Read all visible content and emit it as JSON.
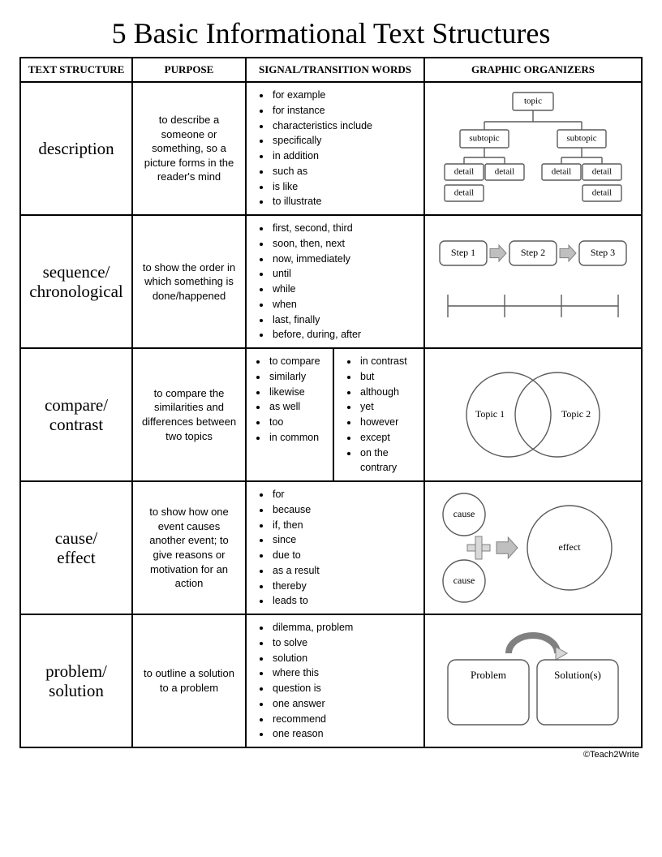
{
  "title": "5 Basic Informational Text Structures",
  "footer": "©Teach2Write",
  "colors": {
    "border": "#000000",
    "background": "#ffffff",
    "text": "#000000",
    "diagram_stroke": "#5b5b5b",
    "diagram_light": "#d9d9d9",
    "arrow_fill": "#bfbfbf"
  },
  "columns": [
    "TEXT STRUCTURE",
    "PURPOSE",
    "SIGNAL/TRANSITION WORDS",
    "GRAPHIC ORGANIZERS"
  ],
  "rows": [
    {
      "name": "description",
      "purpose": "to describe a someone or something, so a picture forms in the reader's mind",
      "signals": [
        "for example",
        "for instance",
        "characteristics include",
        " specifically",
        "in addition",
        "such as",
        "is like",
        "to illustrate"
      ],
      "organizer": {
        "type": "tree",
        "labels": {
          "root": "topic",
          "sub": "subtopic",
          "leaf": "detail"
        },
        "box_stroke": "#5b5b5b",
        "line_stroke": "#5b5b5b",
        "font_size": 11
      }
    },
    {
      "name": "sequence/\nchronological",
      "purpose": "to show the order in which something is done/happened",
      "signals": [
        "first, second, third",
        "soon, then, next",
        "now, immediately",
        "until",
        "while",
        " when",
        "last, finally",
        "before, during, after"
      ],
      "organizer": {
        "type": "sequence",
        "steps": [
          "Step 1",
          "Step 2",
          "Step 3"
        ],
        "box_stroke": "#5b5b5b",
        "arrow_fill": "#bfbfbf",
        "timeline_ticks": 4,
        "font_size": 12
      }
    },
    {
      "name": "compare/\ncontrast",
      "purpose": "to compare the similarities and differences between two topics",
      "signals_left": [
        "to compare",
        "similarly",
        "likewise",
        "as well",
        "too",
        "in common"
      ],
      "signals_right": [
        "in contrast",
        "but",
        "although",
        "yet",
        "however",
        "except",
        "on the contrary"
      ],
      "organizer": {
        "type": "venn",
        "labels": [
          "Topic 1",
          "Topic 2"
        ],
        "circle_stroke": "#5b5b5b",
        "font_size": 12
      }
    },
    {
      "name": "cause/\neffect",
      "purpose": "to show how one event causes another event; to give reasons or motivation for an action",
      "signals": [
        "for",
        "because",
        "if, then",
        "since",
        " due to",
        "as a result",
        "thereby",
        "leads to"
      ],
      "organizer": {
        "type": "cause_effect",
        "cause_label": "cause",
        "effect_label": "effect",
        "circle_stroke": "#5b5b5b",
        "plus_fill": "#d9d9d9",
        "arrow_fill": "#bfbfbf",
        "font_size": 12
      }
    },
    {
      "name": "problem/\nsolution",
      "purpose": "to outline a solution to a problem",
      "signals": [
        "dilemma, problem",
        "to solve",
        "solution",
        "where this",
        "question is",
        "one answer",
        "recommend",
        "one reason"
      ],
      "organizer": {
        "type": "problem_solution",
        "labels": [
          "Problem",
          "Solution(s)"
        ],
        "box_stroke": "#5b5b5b",
        "arrow_stroke": "#808080",
        "arrow_fill": "#d9d9d9",
        "font_size": 13
      }
    }
  ]
}
